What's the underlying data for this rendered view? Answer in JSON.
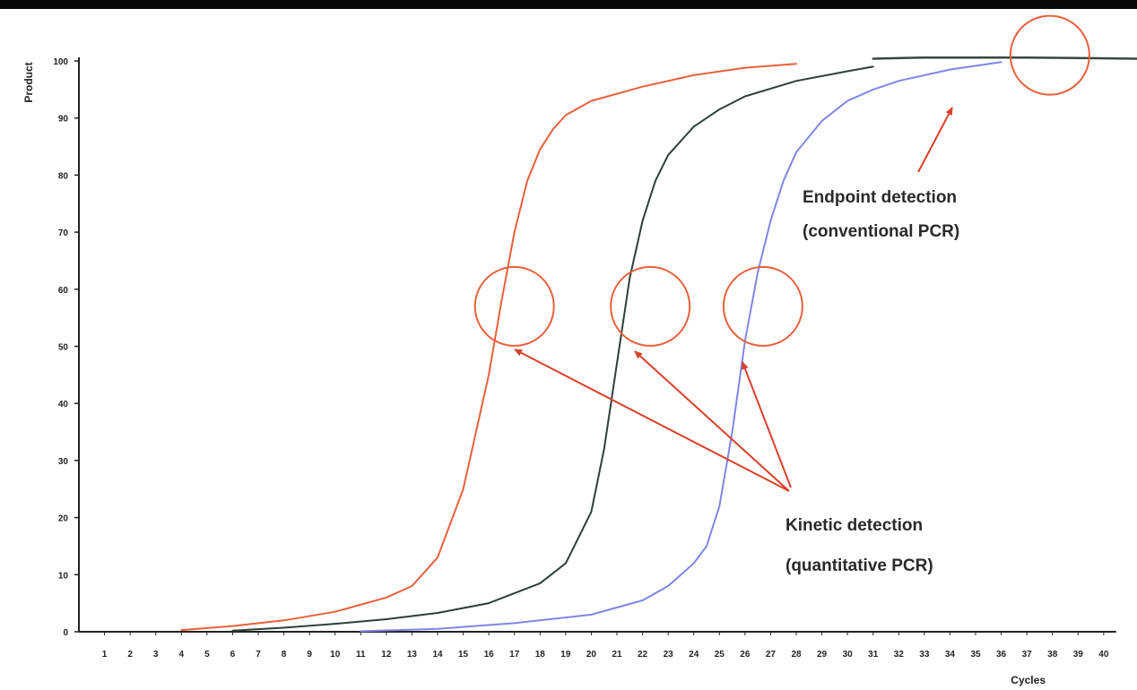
{
  "chart_data": {
    "type": "line",
    "title": "",
    "xlabel": "Cycles",
    "ylabel": "Product",
    "xlim": [
      0,
      41.3
    ],
    "ylim": [
      0,
      100
    ],
    "x_ticks": [
      1,
      2,
      3,
      4,
      5,
      6,
      7,
      8,
      9,
      10,
      11,
      12,
      13,
      14,
      15,
      16,
      17,
      18,
      19,
      20,
      21,
      22,
      23,
      24,
      25,
      26,
      27,
      28,
      29,
      30,
      31,
      32,
      33,
      34,
      35,
      36,
      37,
      38,
      39,
      40
    ],
    "y_ticks": [
      0,
      10,
      20,
      30,
      40,
      50,
      60,
      70,
      80,
      90,
      100
    ],
    "grid": false,
    "legend": "none",
    "series": [
      {
        "color": "#e8603c",
        "x": [
          4,
          6,
          8,
          10,
          12,
          13,
          14,
          15,
          16,
          16.5,
          17,
          17.5,
          18,
          18.5,
          19,
          20,
          22,
          24,
          26,
          28
        ],
        "y": [
          0.3,
          1,
          2,
          3.5,
          6,
          8,
          13,
          25,
          45,
          58,
          70,
          79,
          84.5,
          88,
          90.5,
          93,
          95.5,
          97.5,
          98.8,
          99.5
        ]
      },
      {
        "color": "#2f3f38",
        "x": [
          6,
          8,
          10,
          12,
          14,
          16,
          18,
          19,
          20,
          20.5,
          21,
          21.5,
          22,
          22.5,
          23,
          24,
          25,
          26,
          28,
          30,
          31
        ],
        "y": [
          0.2,
          0.7,
          1.4,
          2.2,
          3.3,
          5,
          8.5,
          12,
          21,
          32,
          47,
          62,
          72,
          79,
          83.5,
          88.5,
          91.5,
          93.8,
          96.5,
          98.2,
          99
        ]
      },
      {
        "color": "#7e86e6",
        "x": [
          11,
          14,
          17,
          20,
          22,
          23,
          24,
          24.5,
          25,
          25.5,
          26,
          26.5,
          27,
          27.5,
          28,
          29,
          30,
          31,
          32,
          34,
          36
        ],
        "y": [
          0.1,
          0.5,
          1.5,
          3,
          5.5,
          8,
          12,
          15,
          22,
          35,
          51,
          63,
          72,
          79,
          84,
          89.5,
          93,
          95,
          96.5,
          98.5,
          99.8
        ]
      },
      {
        "color": "#37473e",
        "x": [
          31,
          33,
          35,
          37,
          39,
          41.3
        ],
        "y": [
          100.4,
          100.6,
          100.6,
          100.6,
          100.5,
          100.4
        ]
      }
    ],
    "annotations": [
      {
        "lines": [
          "Endpoint detection",
          "(conventional PCR)"
        ]
      },
      {
        "lines": [
          "Kinetic detection",
          "(quantitative PCR)"
        ]
      }
    ],
    "highlight_circles": [
      {
        "x": 17,
        "y": 57
      },
      {
        "x": 22.3,
        "y": 57
      },
      {
        "x": 26.7,
        "y": 57
      },
      {
        "x": 37.9,
        "y": 101
      }
    ],
    "accent_color": "#e8603c",
    "arrow_color": "#d9402a"
  }
}
